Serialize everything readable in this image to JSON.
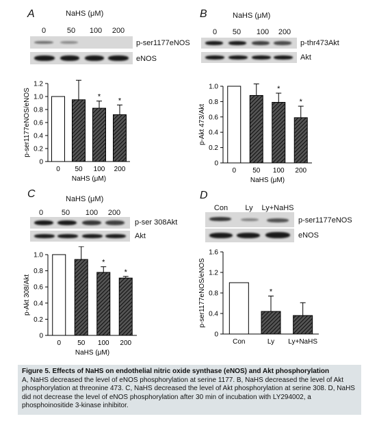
{
  "panels": [
    {
      "letter": "A",
      "treatment_label": "NaHS (μM)",
      "lanes": [
        "0",
        "50",
        "100",
        "200"
      ],
      "blot_labels": [
        "p-ser1177eNOS",
        "eNOS"
      ],
      "chart_data": {
        "type": "bar",
        "categories": [
          "0",
          "50",
          "100",
          "200"
        ],
        "values": [
          1.0,
          0.95,
          0.82,
          0.72
        ],
        "errors": [
          0,
          0.3,
          0.11,
          0.15
        ],
        "significant": [
          false,
          false,
          true,
          true
        ],
        "xlabel": "NaHS (μM)",
        "ylabel": "p-ser1177eNOS/eNOS",
        "ylim": [
          0,
          1.2
        ],
        "yticks": [
          "0",
          "0.2",
          "0.4",
          "0.6",
          "0.8",
          "1.0",
          "1.2"
        ],
        "grid": false
      }
    },
    {
      "letter": "B",
      "treatment_label": "NaHS (μM)",
      "lanes": [
        "0",
        "50",
        "100",
        "200"
      ],
      "blot_labels": [
        "p-thr473Akt",
        "Akt"
      ],
      "chart_data": {
        "type": "bar",
        "categories": [
          "0",
          "50",
          "100",
          "200"
        ],
        "values": [
          1.0,
          0.88,
          0.79,
          0.59
        ],
        "errors": [
          0,
          0.15,
          0.12,
          0.15
        ],
        "significant": [
          false,
          false,
          true,
          true
        ],
        "xlabel": "NaHS (μM)",
        "ylabel": "p-Akt 473/Akt",
        "ylim": [
          0,
          1.0
        ],
        "yticks": [
          "0",
          "0.2",
          "0.4",
          "0.6",
          "0.8",
          "1.0"
        ],
        "grid": false
      }
    },
    {
      "letter": "C",
      "treatment_label": "NaHS (μM)",
      "lanes": [
        "0",
        "50",
        "100",
        "200"
      ],
      "blot_labels": [
        "p-ser 308Akt",
        "Akt"
      ],
      "chart_data": {
        "type": "bar",
        "categories": [
          "0",
          "50",
          "100",
          "200"
        ],
        "values": [
          1.0,
          0.94,
          0.78,
          0.71
        ],
        "errors": [
          0,
          0.16,
          0.07,
          0.02
        ],
        "significant": [
          false,
          false,
          true,
          true
        ],
        "xlabel": "NaHS (μM)",
        "ylabel": "p-Akt 308/Akt",
        "ylim": [
          0,
          1.0
        ],
        "yticks": [
          "0",
          "0.2",
          "0.4",
          "0.6",
          "0.8",
          "1.0"
        ],
        "grid": false
      }
    },
    {
      "letter": "D",
      "treatment_label": "",
      "lanes": [
        "Con",
        "Ly",
        "Ly+NaHS"
      ],
      "blot_labels": [
        "p-ser1177eNOS",
        "eNOS"
      ],
      "chart_data": {
        "type": "bar",
        "categories": [
          "Con",
          "Ly",
          "Ly+NaHS"
        ],
        "values": [
          1.0,
          0.44,
          0.36
        ],
        "errors": [
          0,
          0.3,
          0.25
        ],
        "significant": [
          false,
          true,
          false
        ],
        "xlabel": "",
        "ylabel": "p-ser1177eNOS/eNOS",
        "ylim": [
          0,
          1.6
        ],
        "yticks": [
          "0",
          "0.4",
          "0.8",
          "1.2",
          "1.6"
        ],
        "grid": false
      }
    }
  ],
  "colors": {
    "control_bar": "#ffffff",
    "treated_bar": "#2b2b2b",
    "caption_bg": "#dde3e6"
  },
  "significance_marker": "*",
  "caption": {
    "title": "Figure 5.  Effects of NaHS on endothelial nitric oxide synthase (eNOS) and Akt phosphorylation",
    "text": "A, NaHS decreased the level of eNOS phosphorylation at serine 1177. B, NaHS decreased the level of Akt phosphorylation at threonine 473. C, NaHS decreased the level of Akt phosphorylation at serine 308. D, NaHS did not decrease the level of eNOS phosphorylation after 30 min of incubation with LY294002, a phosphoinositide 3-kinase inhibitor."
  }
}
